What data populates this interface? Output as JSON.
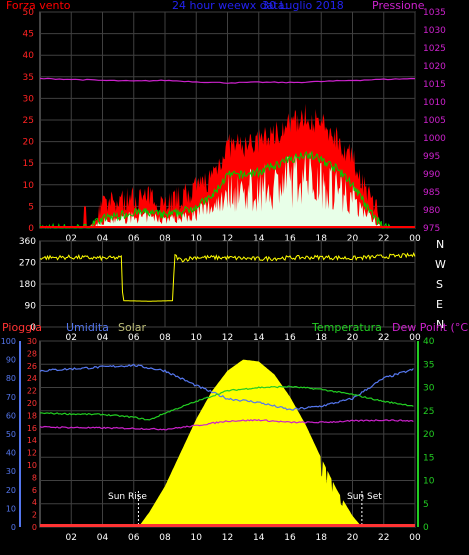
{
  "header": {
    "wind_label": "Forza vento",
    "title": "24 hour weewx data:",
    "subtitle": "30 Luglio 2018",
    "pressure_label": "Pressione"
  },
  "panel3": {
    "rain_label": "Pioggia",
    "humidity_label": "Umidita",
    "solar_label": "Solar",
    "temp_label": "Temperatura",
    "dew_label": "Dew Point (°C)",
    "sunrise_label": "Sun Rise",
    "sunset_label": "Sun Set"
  },
  "compass": [
    "N",
    "W",
    "S",
    "E",
    "N"
  ],
  "colors": {
    "wind": "#ff0000",
    "gust": "#ffffff",
    "avg": "#00cc00",
    "pressure": "#cc22cc",
    "direction": "#ffff00",
    "humidity": "#5577ee",
    "temperature": "#22cc22",
    "dewpoint": "#cc22cc",
    "solar": "#ffff00",
    "rain": "#ff3333",
    "grid": "#404040"
  },
  "chart_data": [
    {
      "type": "area",
      "title": "24 hour weewx data:",
      "x_ticks": [
        "02",
        "04",
        "06",
        "08",
        "10",
        "12",
        "14",
        "16",
        "18",
        "20",
        "22",
        "00"
      ],
      "y_left_ticks": [
        "0",
        "5",
        "10",
        "15",
        "20",
        "25",
        "30",
        "35",
        "40",
        "45",
        "50"
      ],
      "y_right_ticks": [
        "975",
        "980",
        "985",
        "990",
        "995",
        "1000",
        "1005",
        "1010",
        "1015",
        "1020",
        "1025",
        "1030",
        "1035"
      ],
      "ylim_left": [
        0,
        50
      ],
      "ylim_right": [
        975,
        1035
      ],
      "xlim_hours": [
        0,
        24
      ],
      "series": [
        {
          "name": "Forza vento",
          "unit": "axis-left",
          "x": [
            0,
            1,
            2,
            3,
            4,
            5,
            6,
            7,
            8,
            9,
            10,
            11,
            12,
            13,
            14,
            15,
            16,
            17,
            18,
            19,
            20,
            21,
            22,
            23,
            24
          ],
          "y": [
            0,
            0,
            0,
            0,
            3,
            4,
            5,
            5,
            4,
            5,
            7,
            10,
            17,
            17,
            18,
            20,
            22,
            24,
            22,
            19,
            14,
            6,
            0,
            0,
            0
          ]
        },
        {
          "name": "Pressione",
          "unit": "axis-right",
          "x": [
            0,
            2,
            4,
            6,
            8,
            10,
            12,
            14,
            16,
            18,
            20,
            22,
            24
          ],
          "y": [
            1016.5,
            1016.3,
            1016,
            1015.8,
            1016,
            1015.6,
            1015.3,
            1015.5,
            1015.4,
            1015.7,
            1016,
            1016.3,
            1016.5
          ]
        }
      ]
    },
    {
      "type": "line",
      "x_ticks": [
        "02",
        "04",
        "06",
        "08",
        "10",
        "12",
        "14",
        "16",
        "18",
        "20",
        "22",
        "00"
      ],
      "y_ticks": [
        "0",
        "90",
        "180",
        "270",
        "360"
      ],
      "ylim": [
        0,
        360
      ],
      "series": [
        {
          "name": "direction",
          "x": [
            0,
            2,
            4,
            5.2,
            5.3,
            7,
            8.5,
            8.6,
            9,
            10,
            12,
            14,
            16,
            18,
            20,
            22,
            24
          ],
          "y": [
            290,
            292,
            288,
            290,
            110,
            108,
            110,
            300,
            280,
            292,
            290,
            285,
            290,
            292,
            288,
            295,
            300
          ]
        }
      ]
    },
    {
      "type": "area",
      "x_ticks": [
        "02",
        "04",
        "06",
        "08",
        "10",
        "12",
        "14",
        "16",
        "18",
        "20",
        "22",
        "00"
      ],
      "ylim_humidity": [
        0,
        100
      ],
      "ylim_rain": [
        0,
        30
      ],
      "ylim_temp": [
        0,
        40
      ],
      "y_hum_ticks": [
        "0",
        "10",
        "20",
        "30",
        "40",
        "50",
        "60",
        "70",
        "80",
        "90",
        "100"
      ],
      "y_rain_ticks": [
        "0",
        "2",
        "4",
        "6",
        "8",
        "10",
        "12",
        "14",
        "16",
        "18",
        "20",
        "22",
        "24",
        "26",
        "28",
        "30"
      ],
      "y_temp_ticks": [
        "0",
        "5",
        "10",
        "15",
        "20",
        "25",
        "30",
        "35",
        "40"
      ],
      "series": [
        {
          "name": "Umidita",
          "x": [
            0,
            2,
            4,
            6,
            8,
            10,
            12,
            14,
            16,
            18,
            20,
            22,
            24
          ],
          "y": [
            84,
            85,
            86,
            87,
            84,
            76,
            69,
            67,
            63,
            65,
            69,
            80,
            85
          ]
        },
        {
          "name": "Temperatura",
          "x": [
            0,
            2,
            4,
            6,
            7,
            8,
            10,
            12,
            14,
            16,
            18,
            20,
            22,
            24
          ],
          "y": [
            24.5,
            24.3,
            24.2,
            23.6,
            23,
            24.5,
            27,
            29.3,
            30,
            30.2,
            29.6,
            28.5,
            27,
            26
          ]
        },
        {
          "name": "Dew Point (°C)",
          "x": [
            0,
            2,
            4,
            6,
            8,
            10,
            12,
            14,
            16,
            18,
            20,
            22,
            24
          ],
          "y": [
            21.5,
            21.4,
            21.3,
            21.2,
            21,
            21.8,
            22.8,
            23,
            22.5,
            22.5,
            22.8,
            23,
            22.8
          ]
        },
        {
          "name": "Solar",
          "x": [
            6.3,
            7,
            8,
            9,
            10,
            11,
            12,
            13,
            14,
            15,
            16,
            17,
            18,
            19,
            20,
            20.6
          ],
          "y": [
            0,
            8,
            22,
            40,
            58,
            73,
            84,
            90,
            89,
            82,
            70,
            55,
            37,
            20,
            6,
            0
          ]
        },
        {
          "name": "Pioggia",
          "x": [
            0,
            24
          ],
          "y": [
            0,
            0
          ]
        }
      ]
    }
  ]
}
